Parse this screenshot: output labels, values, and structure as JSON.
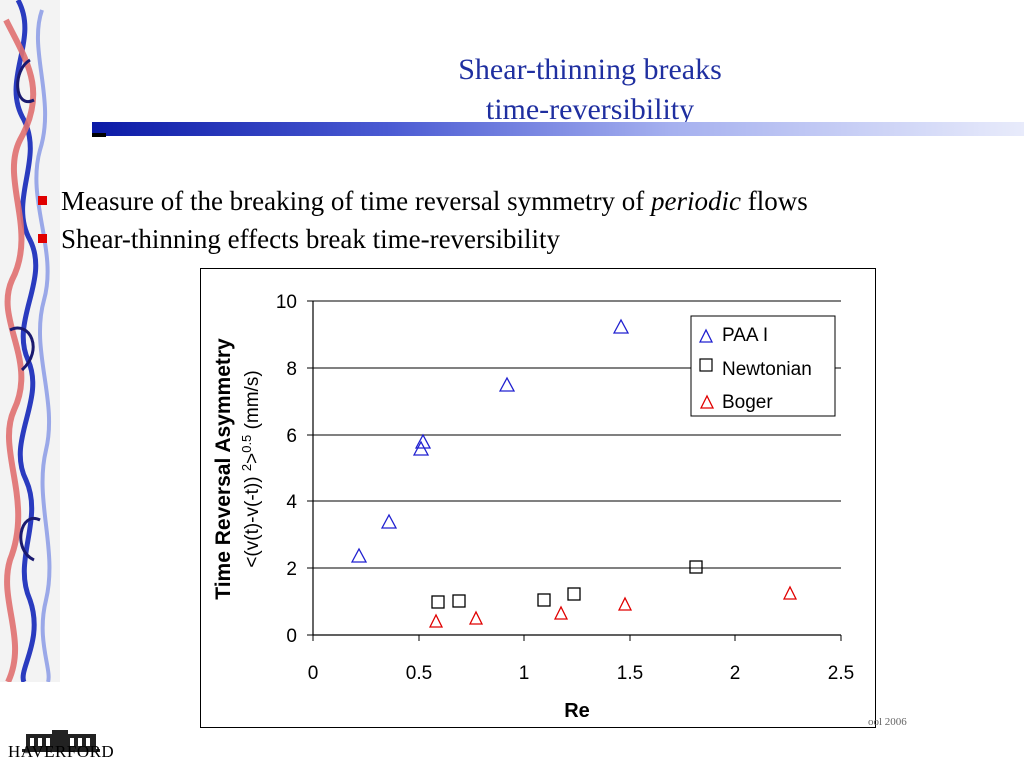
{
  "slide": {
    "title_line1": "Shear-thinning breaks",
    "title_line2": "time-reversibility",
    "bullets": [
      {
        "before": "Measure of the breaking of time reversal symmetry of ",
        "italic": "periodic",
        "after": " flows"
      },
      {
        "before": "Shear-thinning effects break time-reversibility",
        "italic": "",
        "after": ""
      }
    ],
    "footer_text": "ool 2006",
    "logo_text": "HAVERFORD"
  },
  "colors": {
    "title": "#1f2fa0",
    "bullet": "#e00000",
    "paa": "#2020d0",
    "newtonian": "#000000",
    "boger": "#e00000"
  },
  "chart_data": {
    "type": "scatter",
    "xlabel": "Re",
    "ylabel_line1": "Time Reversal Asymmetry",
    "ylabel_line2": "<(v(t)-v(-t)) ²>^0.5 (mm/s)",
    "xlim": [
      0,
      2.5
    ],
    "ylim": [
      0,
      10
    ],
    "x_ticks": [
      "0",
      "0.5",
      "1",
      "1.5",
      "2",
      "2.5"
    ],
    "y_ticks": [
      "0",
      "2",
      "4",
      "6",
      "8",
      "10"
    ],
    "grid": "horizontal",
    "legend_position": "top-right",
    "series": [
      {
        "name": "PAA I",
        "marker": "triangle",
        "points": [
          [
            0.22,
            2.2
          ],
          [
            0.36,
            3.4
          ],
          [
            0.51,
            5.6
          ],
          [
            0.52,
            5.8
          ],
          [
            0.92,
            7.5
          ],
          [
            1.46,
            9.2
          ]
        ]
      },
      {
        "name": "Newtonian",
        "marker": "square",
        "points": [
          [
            0.6,
            1.0
          ],
          [
            0.7,
            1.0
          ],
          [
            1.1,
            1.05
          ],
          [
            1.24,
            1.25
          ],
          [
            1.82,
            2.0
          ]
        ]
      },
      {
        "name": "Boger",
        "marker": "triangle",
        "points": [
          [
            0.58,
            0.4
          ],
          [
            0.77,
            0.5
          ],
          [
            1.18,
            0.7
          ],
          [
            1.47,
            0.95
          ],
          [
            2.27,
            1.3
          ]
        ]
      }
    ]
  }
}
